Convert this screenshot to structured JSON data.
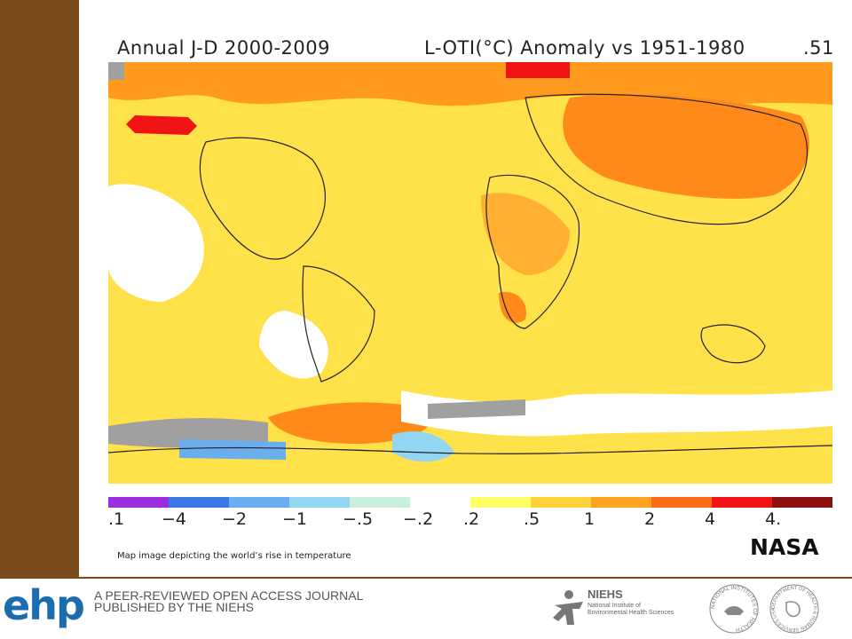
{
  "map": {
    "title_left": "Annual J-D 2000-2009",
    "title_mid": "L-OTI(°C) Anomaly vs 1951-1980",
    "title_right": ".51"
  },
  "legend": {
    "colors": [
      "#9a2ee0",
      "#3a78e8",
      "#6aaef0",
      "#92d6f2",
      "#c8f0dc",
      "#ffffff",
      "#ffff66",
      "#ffd23a",
      "#ffa21e",
      "#ff6a14",
      "#f01414",
      "#8a1010"
    ],
    "labels": [
      ".1",
      "−4",
      "−2",
      "−1",
      "−.5",
      "−.2",
      ".2",
      ".5",
      "1",
      "2",
      "4",
      "4."
    ]
  },
  "caption": "Map image depicting the world’s rise in temperature",
  "credit": "NASA",
  "footer": {
    "logo": "ehp",
    "journal_line1": "A PEER-REVIEWED OPEN ACCESS JOURNAL",
    "journal_line2": "PUBLISHED BY THE NIEHS",
    "niehs_name": "NIEHS",
    "niehs_full_1": "National Institute of",
    "niehs_full_2": "Environmental Health Sciences",
    "nih_seal_text": "NATIONAL INSTITUTES OF HEALTH",
    "hhs_seal_text": "DEPARTMENT OF HEALTH & HUMAN SERVICES USA"
  }
}
